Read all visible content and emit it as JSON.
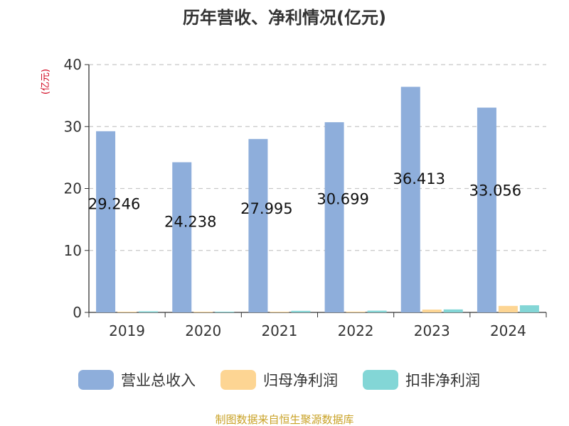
{
  "colors": {
    "revenue": "#8eaedb",
    "net_profit": "#fdd593",
    "deducted_profit": "#83d6d6",
    "unit_label": "#d0021b",
    "source": "#c9a227"
  },
  "source_text": "制图数据来自恒生聚源数据库",
  "chart_data": {
    "type": "bar",
    "title": "历年营收、净利情况(亿元)",
    "ylabel": "(亿元)",
    "xlabel": "",
    "categories": [
      "2019",
      "2020",
      "2021",
      "2022",
      "2023",
      "2024"
    ],
    "ylim": [
      0,
      40
    ],
    "yticks": [
      0,
      10,
      20,
      30,
      40
    ],
    "grid": true,
    "legend_position": "bottom",
    "series": [
      {
        "name": "营业总收入",
        "values": [
          29.246,
          24.238,
          27.995,
          30.699,
          36.413,
          33.056
        ],
        "labels": [
          "29.246",
          "24.238",
          "27.995",
          "30.699",
          "36.413",
          "33.056"
        ]
      },
      {
        "name": "归母净利润",
        "values": [
          0.05,
          0.06,
          0.08,
          0.13,
          0.45,
          1.05
        ]
      },
      {
        "name": "扣非净利润",
        "values": [
          0.18,
          0.12,
          0.25,
          0.28,
          0.48,
          1.15
        ]
      }
    ]
  }
}
